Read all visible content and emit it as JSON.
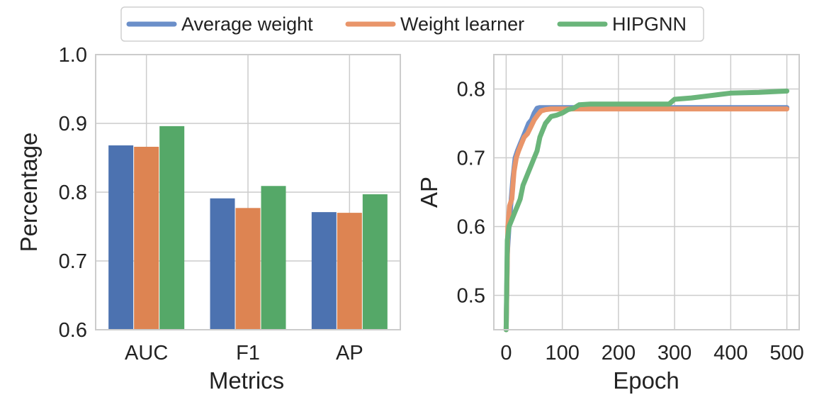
{
  "legend": {
    "items": [
      {
        "label": "Average weight",
        "color": "#6b8fc9"
      },
      {
        "label": "Weight learner",
        "color": "#e9956a"
      },
      {
        "label": "HIPGNN",
        "color": "#6ab57a"
      }
    ]
  },
  "chart_data": [
    {
      "type": "bar",
      "title": "",
      "xlabel": "Metrics",
      "ylabel": "Percentage",
      "ylim": [
        0.6,
        1.0
      ],
      "yticks": [
        "0.6",
        "0.7",
        "0.8",
        "0.9",
        "1.0"
      ],
      "grid": true,
      "categories": [
        "AUC",
        "F1",
        "AP"
      ],
      "series": [
        {
          "name": "Average weight",
          "color": "#4c72b0",
          "values": [
            0.868,
            0.791,
            0.771
          ]
        },
        {
          "name": "Weight learner",
          "color": "#dd8452",
          "values": [
            0.866,
            0.777,
            0.77
          ]
        },
        {
          "name": "HIPGNN",
          "color": "#55a868",
          "values": [
            0.896,
            0.809,
            0.797
          ]
        }
      ]
    },
    {
      "type": "line",
      "title": "",
      "xlabel": "Epoch",
      "ylabel": "AP",
      "xlim": [
        -22,
        522
      ],
      "ylim": [
        0.45,
        0.85
      ],
      "xticks": [
        "0",
        "100",
        "200",
        "300",
        "400",
        "500"
      ],
      "yticks": [
        "0.5",
        "0.6",
        "0.7",
        "0.8"
      ],
      "grid": true,
      "series": [
        {
          "name": "Average weight",
          "color": "#6b8fc9",
          "x": [
            0,
            2,
            5,
            8,
            12,
            16,
            20,
            25,
            30,
            35,
            40,
            45,
            50,
            55,
            60,
            80,
            100,
            150,
            200,
            300,
            400,
            500
          ],
          "y": [
            0.45,
            0.56,
            0.6,
            0.63,
            0.67,
            0.7,
            0.71,
            0.72,
            0.73,
            0.74,
            0.75,
            0.755,
            0.765,
            0.772,
            0.773,
            0.773,
            0.773,
            0.773,
            0.773,
            0.773,
            0.773,
            0.773
          ]
        },
        {
          "name": "Weight learner",
          "color": "#e9956a",
          "x": [
            0,
            3,
            6,
            10,
            14,
            18,
            22,
            27,
            32,
            38,
            44,
            50,
            56,
            62,
            70,
            80,
            100,
            150,
            200,
            300,
            400,
            500
          ],
          "y": [
            0.45,
            0.6,
            0.63,
            0.64,
            0.68,
            0.7,
            0.71,
            0.72,
            0.73,
            0.735,
            0.745,
            0.755,
            0.762,
            0.768,
            0.77,
            0.771,
            0.771,
            0.771,
            0.771,
            0.771,
            0.771,
            0.771
          ]
        },
        {
          "name": "HIPGNN",
          "color": "#6ab57a",
          "x": [
            0,
            2,
            5,
            10,
            15,
            20,
            25,
            30,
            35,
            40,
            45,
            50,
            55,
            60,
            65,
            70,
            75,
            80,
            90,
            100,
            110,
            120,
            130,
            150,
            200,
            250,
            290,
            300,
            330,
            360,
            400,
            450,
            500
          ],
          "y": [
            0.45,
            0.58,
            0.6,
            0.61,
            0.62,
            0.63,
            0.64,
            0.66,
            0.67,
            0.68,
            0.69,
            0.7,
            0.71,
            0.73,
            0.74,
            0.75,
            0.755,
            0.76,
            0.762,
            0.765,
            0.77,
            0.772,
            0.777,
            0.778,
            0.778,
            0.778,
            0.778,
            0.785,
            0.787,
            0.79,
            0.794,
            0.795,
            0.797
          ]
        }
      ]
    }
  ]
}
